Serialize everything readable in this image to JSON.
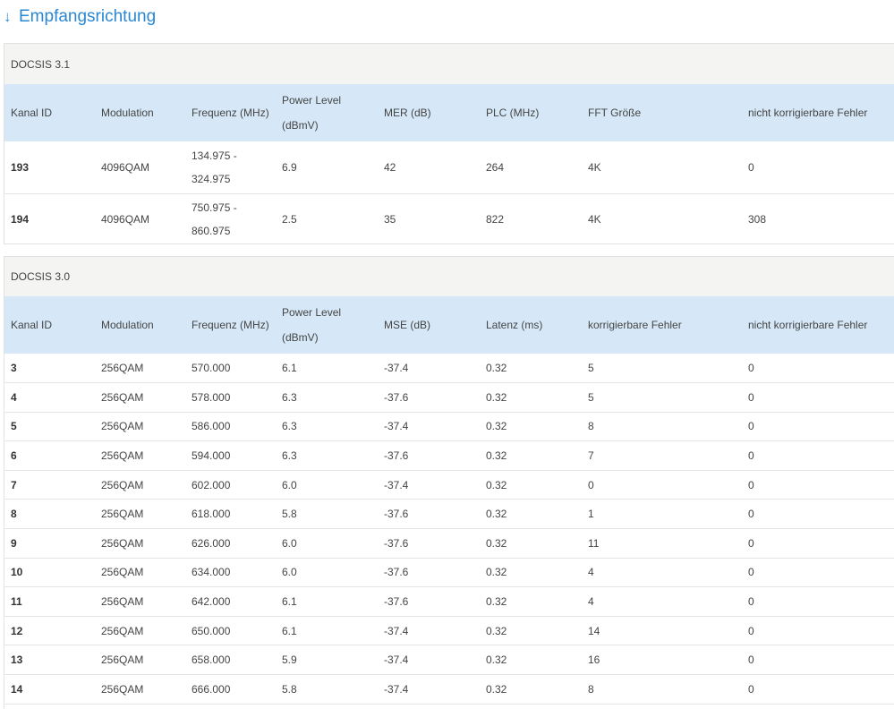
{
  "heading": {
    "arrow": "↓",
    "label": "Empfangsrichtung"
  },
  "docsis31": {
    "title": "DOCSIS 3.1",
    "headers": [
      "Kanal ID",
      "Modulation",
      "Frequenz (MHz)",
      "Power Level (dBmV)",
      "MER (dB)",
      "PLC (MHz)",
      "FFT Größe",
      "nicht korrigierbare Fehler"
    ],
    "rows": [
      [
        "193",
        "4096QAM",
        "134.975 - 324.975",
        "6.9",
        "42",
        "264",
        "4K",
        "0"
      ],
      [
        "194",
        "4096QAM",
        "750.975 - 860.975",
        "2.5",
        "35",
        "822",
        "4K",
        "308"
      ]
    ]
  },
  "docsis30": {
    "title": "DOCSIS 3.0",
    "headers": [
      "Kanal ID",
      "Modulation",
      "Frequenz (MHz)",
      "Power Level (dBmV)",
      "MSE (dB)",
      "Latenz (ms)",
      "korrigierbare Fehler",
      "nicht korrigierbare Fehler"
    ],
    "rows": [
      [
        "3",
        "256QAM",
        "570.000",
        "6.1",
        "-37.4",
        "0.32",
        "5",
        "0"
      ],
      [
        "4",
        "256QAM",
        "578.000",
        "6.3",
        "-37.6",
        "0.32",
        "5",
        "0"
      ],
      [
        "5",
        "256QAM",
        "586.000",
        "6.3",
        "-37.4",
        "0.32",
        "8",
        "0"
      ],
      [
        "6",
        "256QAM",
        "594.000",
        "6.3",
        "-37.6",
        "0.32",
        "7",
        "0"
      ],
      [
        "7",
        "256QAM",
        "602.000",
        "6.0",
        "-37.4",
        "0.32",
        "0",
        "0"
      ],
      [
        "8",
        "256QAM",
        "618.000",
        "5.8",
        "-37.6",
        "0.32",
        "1",
        "0"
      ],
      [
        "9",
        "256QAM",
        "626.000",
        "6.0",
        "-37.6",
        "0.32",
        "11",
        "0"
      ],
      [
        "10",
        "256QAM",
        "634.000",
        "6.0",
        "-37.6",
        "0.32",
        "4",
        "0"
      ],
      [
        "11",
        "256QAM",
        "642.000",
        "6.1",
        "-37.6",
        "0.32",
        "4",
        "0"
      ],
      [
        "12",
        "256QAM",
        "650.000",
        "6.1",
        "-37.4",
        "0.32",
        "14",
        "0"
      ],
      [
        "13",
        "256QAM",
        "658.000",
        "5.9",
        "-37.4",
        "0.32",
        "16",
        "0"
      ],
      [
        "14",
        "256QAM",
        "666.000",
        "5.8",
        "-37.4",
        "0.32",
        "8",
        "0"
      ]
    ]
  },
  "colors": {
    "accent": "#2b87d1",
    "header_bg": "#d6e8f7",
    "title_bg": "#f4f4f2"
  }
}
